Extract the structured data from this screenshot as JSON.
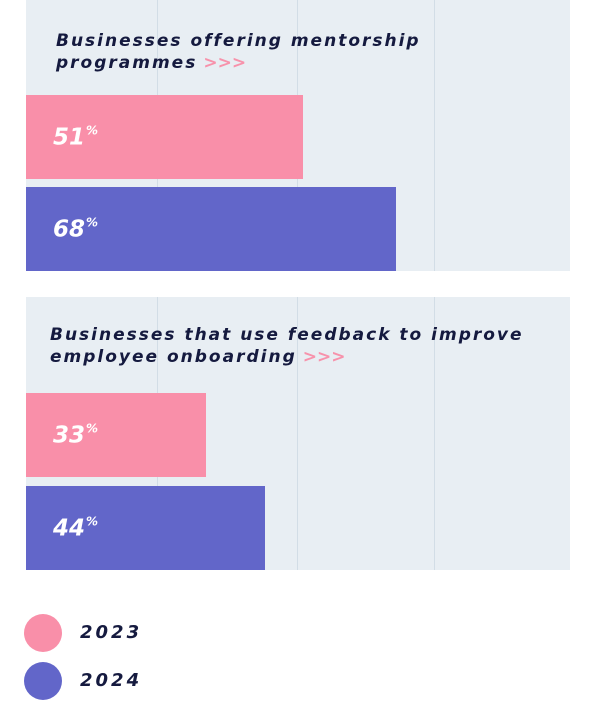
{
  "chart_data": {
    "type": "bar",
    "orientation": "horizontal",
    "value_suffix": "%",
    "xlim": [
      0,
      100
    ],
    "grid": true,
    "legend_position": "bottom-left",
    "colors": {
      "2023": "#f98fa9",
      "2024": "#6266c9"
    },
    "groups": [
      {
        "title": "Businesses offering mentorship programmes",
        "title_suffix": ">>>",
        "series": [
          {
            "name": "2023",
            "value": 51
          },
          {
            "name": "2024",
            "value": 68
          }
        ]
      },
      {
        "title": "Businesses that use feedback to improve employee onboarding",
        "title_suffix": ">>>",
        "series": [
          {
            "name": "2023",
            "value": 33
          },
          {
            "name": "2024",
            "value": 44
          }
        ]
      }
    ],
    "legend": [
      {
        "name": "2023",
        "color": "#f98fa9"
      },
      {
        "name": "2024",
        "color": "#6266c9"
      }
    ]
  }
}
